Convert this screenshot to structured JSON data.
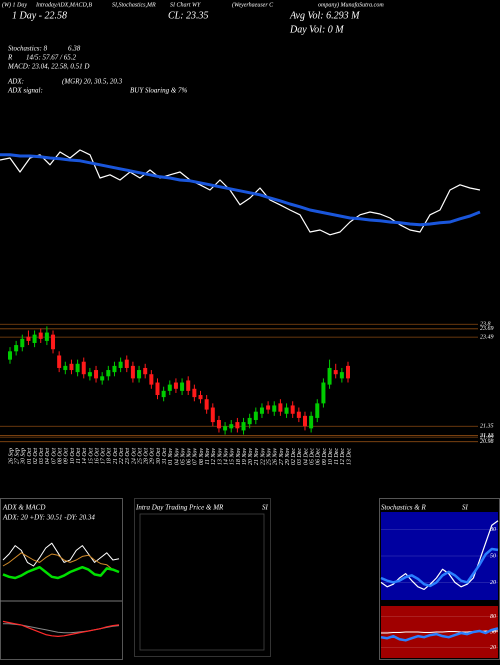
{
  "header": {
    "top_line": [
      "(W) 1 Day",
      "IntradayADX,MACD,B",
      "SI,Stochastics,MR",
      "SI Chart WY",
      "(Weyerhaeuser C",
      "ompany) MunafaSutra.com"
    ],
    "day": "1 Day - 22.58",
    "close": "CL: 23.35",
    "avg_vol": "Avg Vol: 6.293 M",
    "day_vol": "Day Vol: 0  M",
    "stats": [
      {
        "left": "Stochastics: 8",
        "right": "6.38"
      },
      {
        "left": "R",
        "right": "14/5: 57.67 / 65.2"
      },
      {
        "left": "MACD: 23.04, 22.58, 0.51 D"
      },
      {
        "left": "ADX:",
        "right": "(MGR) 20, 30.5, 20.3"
      },
      {
        "left": "ADX  signal:",
        "right": "BUY Sloaring & 7%"
      }
    ]
  },
  "chart_data": [
    {
      "type": "line",
      "ylim": [
        21,
        24
      ],
      "series": [
        {
          "color": "#ffffff",
          "width": 1.2,
          "values": [
            23.5,
            23.55,
            23.2,
            23.55,
            23.63,
            23.38,
            23.7,
            23.55,
            23.75,
            23.63,
            23.05,
            23.13,
            23.0,
            23.2,
            23.05,
            23.25,
            23.05,
            23.13,
            23.2,
            23.0,
            22.88,
            22.75,
            23.0,
            22.75,
            22.38,
            22.55,
            22.8,
            22.5,
            22.38,
            22.25,
            22.13,
            21.7,
            21.75,
            21.63,
            21.7,
            21.95,
            22.13,
            22.2,
            22.15,
            22.05,
            21.88,
            21.75,
            21.7,
            22.13,
            22.25,
            22.75,
            22.88,
            22.8,
            22.75
          ]
        },
        {
          "color": "#1a56db",
          "width": 3,
          "values": [
            23.63,
            23.63,
            23.6,
            23.6,
            23.58,
            23.55,
            23.53,
            23.5,
            23.48,
            23.43,
            23.38,
            23.33,
            23.28,
            23.23,
            23.18,
            23.13,
            23.08,
            23.05,
            23.0,
            22.98,
            22.93,
            22.88,
            22.83,
            22.78,
            22.73,
            22.68,
            22.63,
            22.55,
            22.48,
            22.4,
            22.33,
            22.25,
            22.2,
            22.15,
            22.1,
            22.05,
            22.03,
            22.0,
            21.98,
            21.95,
            21.93,
            21.9,
            21.88,
            21.9,
            21.93,
            21.95,
            22.03,
            22.1,
            22.2
          ]
        }
      ]
    },
    {
      "type": "candlestick",
      "ylim": [
        20.9,
        23.95
      ],
      "yticks": [
        23.8,
        23.69,
        23.49,
        21.35,
        21.13,
        21.09,
        20.98
      ],
      "grid_color": "#8a4a12",
      "up_color": "#00cc00",
      "down_color": "#ff1a1a",
      "x": [
        "26 Sep",
        "27 Sep",
        "30 Sep",
        "01 Oct",
        "02 Oct",
        "03 Oct",
        "04 Oct",
        "07 Oct",
        "08 Oct",
        "09 Oct",
        "10 Oct",
        "11 Oct",
        "14 Oct",
        "15 Oct",
        "16 Oct",
        "17 Oct",
        "18 Oct",
        "21 Oct",
        "22 Oct",
        "23 Oct",
        "24 Oct",
        "25 Oct",
        "28 Oct",
        "29 Oct",
        "30 Oct",
        "31 Oct",
        "01 Nov",
        "04 Nov",
        "05 Nov",
        "06 Nov",
        "07 Nov",
        "08 Nov",
        "11 Nov",
        "12 Nov",
        "13 Nov",
        "14 Nov",
        "15 Nov",
        "18 Nov",
        "19 Nov",
        "20 Nov",
        "21 Nov",
        "22 Nov",
        "25 Nov",
        "26 Nov",
        "27 Nov",
        "29 Nov",
        "02 Dec",
        "03 Dec",
        "04 Dec",
        "05 Dec",
        "06 Dec",
        "09 Dec",
        "10 Dec",
        "11 Dec",
        "12 Dec",
        "13 Dec"
      ],
      "open": [
        22.95,
        23.15,
        23.25,
        23.5,
        23.35,
        23.6,
        23.4,
        23.55,
        23.05,
        22.7,
        22.85,
        22.65,
        22.9,
        22.55,
        22.7,
        22.45,
        22.55,
        22.65,
        22.75,
        22.95,
        22.8,
        22.5,
        22.75,
        22.6,
        22.4,
        22.05,
        22.2,
        22.4,
        22.2,
        22.45,
        22.25,
        22.1,
        22.0,
        21.8,
        21.5,
        21.25,
        21.3,
        21.45,
        21.25,
        21.4,
        21.5,
        21.65,
        21.85,
        21.7,
        21.9,
        21.65,
        21.85,
        21.7,
        21.6,
        21.3,
        21.55,
        21.9,
        22.35,
        22.7,
        22.5,
        22.8
      ],
      "high": [
        23.25,
        23.4,
        23.55,
        23.65,
        23.65,
        23.7,
        23.75,
        23.65,
        23.15,
        22.9,
        22.95,
        22.95,
        23.0,
        22.75,
        22.8,
        22.65,
        22.8,
        22.9,
        23.0,
        23.05,
        22.9,
        22.8,
        22.85,
        22.7,
        22.5,
        22.3,
        22.45,
        22.5,
        22.5,
        22.55,
        22.35,
        22.2,
        22.1,
        21.9,
        21.6,
        21.45,
        21.5,
        21.55,
        21.55,
        21.65,
        21.8,
        21.9,
        21.95,
        21.95,
        22.0,
        21.9,
        21.95,
        21.8,
        21.7,
        21.7,
        22.0,
        22.5,
        22.95,
        22.85,
        22.75,
        22.9
      ],
      "low": [
        22.85,
        23.05,
        23.15,
        23.3,
        23.25,
        23.35,
        23.3,
        23.1,
        22.65,
        22.6,
        22.6,
        22.55,
        22.5,
        22.45,
        22.4,
        22.35,
        22.45,
        22.55,
        22.65,
        22.65,
        22.4,
        22.4,
        22.5,
        22.25,
        22.0,
        21.95,
        22.1,
        22.15,
        22.1,
        22.1,
        21.95,
        21.9,
        21.65,
        21.35,
        21.2,
        21.15,
        21.2,
        21.2,
        21.15,
        21.3,
        21.4,
        21.55,
        21.65,
        21.6,
        21.6,
        21.55,
        21.55,
        21.45,
        21.25,
        21.2,
        21.45,
        21.8,
        22.25,
        22.5,
        22.4,
        22.4
      ],
      "close": [
        23.15,
        23.3,
        23.45,
        23.4,
        23.55,
        23.45,
        23.6,
        23.2,
        22.75,
        22.8,
        22.7,
        22.85,
        22.6,
        22.65,
        22.5,
        22.55,
        22.7,
        22.8,
        22.9,
        22.75,
        22.5,
        22.7,
        22.6,
        22.35,
        22.1,
        22.2,
        22.35,
        22.25,
        22.4,
        22.2,
        22.05,
        22.0,
        21.75,
        21.45,
        21.3,
        21.35,
        21.4,
        21.3,
        21.45,
        21.55,
        21.7,
        21.8,
        21.75,
        21.85,
        21.7,
        21.8,
        21.65,
        21.55,
        21.35,
        21.6,
        21.9,
        22.4,
        22.75,
        22.6,
        22.65,
        22.5
      ]
    },
    {
      "type": "line",
      "title": "ADX  & MACD",
      "subtitle": "ADX: 20  +DY: 30.51  -DY: 20.34",
      "ylim": [
        0,
        60
      ],
      "series": [
        {
          "color": "#ffffff",
          "width": 1,
          "values": [
            30,
            35,
            42,
            38,
            28,
            25,
            32,
            40,
            44,
            36,
            28,
            30,
            38,
            42,
            35,
            28,
            32,
            36,
            30,
            31
          ]
        },
        {
          "color": "#d08a2a",
          "width": 1,
          "values": [
            25,
            28,
            32,
            36,
            33,
            30,
            28,
            32,
            35,
            34,
            30,
            28,
            30,
            33,
            34,
            30,
            27,
            26,
            22,
            20
          ]
        },
        {
          "color": "#00e000",
          "width": 2.5,
          "values": [
            18,
            16,
            15,
            17,
            20,
            22,
            24,
            20,
            16,
            15,
            17,
            20,
            22,
            24,
            22,
            18,
            17,
            23,
            22,
            20
          ]
        }
      ]
    },
    {
      "type": "line",
      "ylim": [
        -2,
        2
      ],
      "series": [
        {
          "color": "#888888",
          "width": 1,
          "values": [
            0.6,
            0.6,
            0.55,
            0.5,
            0.4,
            0.3,
            0.2,
            0.1,
            0.0,
            -0.1,
            -0.15,
            -0.15,
            -0.1,
            -0.05,
            0.0,
            0.1,
            0.2,
            0.3,
            0.4,
            0.45
          ]
        },
        {
          "color": "#ff2a2a",
          "width": 1.2,
          "values": [
            0.8,
            0.7,
            0.6,
            0.5,
            0.3,
            0.1,
            -0.1,
            -0.3,
            -0.4,
            -0.45,
            -0.4,
            -0.3,
            -0.2,
            -0.1,
            0.0,
            0.1,
            0.2,
            0.35,
            0.45,
            0.51
          ]
        }
      ]
    },
    {
      "type": "panel",
      "title": "Intra Day Trading Price  & MR",
      "subtitle": "SI"
    },
    {
      "type": "line",
      "title": "Stochastics & R",
      "subtitle": "SI",
      "ylim": [
        0,
        100
      ],
      "yticks": [
        20,
        50,
        80
      ],
      "grid": true,
      "background": "#0000a0",
      "series": [
        {
          "color": "#ffffff",
          "width": 1.2,
          "values": [
            20,
            15,
            18,
            25,
            30,
            22,
            15,
            12,
            18,
            25,
            35,
            30,
            20,
            15,
            18,
            25,
            45,
            65,
            85,
            90
          ]
        },
        {
          "color": "#2a7fff",
          "width": 2.5,
          "values": [
            25,
            22,
            20,
            22,
            26,
            28,
            24,
            18,
            16,
            20,
            28,
            32,
            28,
            22,
            20,
            30,
            40,
            52,
            58,
            57
          ]
        }
      ]
    },
    {
      "type": "line",
      "ylim": [
        0,
        100
      ],
      "yticks": [
        20,
        50,
        80
      ],
      "grid": true,
      "background": "#a00000",
      "series": [
        {
          "color": "#ffffff",
          "width": 1,
          "values": [
            48,
            48,
            49,
            49,
            50,
            50,
            50,
            49,
            49,
            50,
            50,
            51,
            51,
            50,
            50,
            51,
            51,
            52,
            52,
            52
          ]
        },
        {
          "color": "#2a7fff",
          "width": 2.5,
          "values": [
            40,
            38,
            42,
            36,
            34,
            38,
            42,
            40,
            44,
            46,
            42,
            40,
            44,
            48,
            46,
            50,
            52,
            48,
            54,
            57
          ]
        }
      ]
    }
  ]
}
